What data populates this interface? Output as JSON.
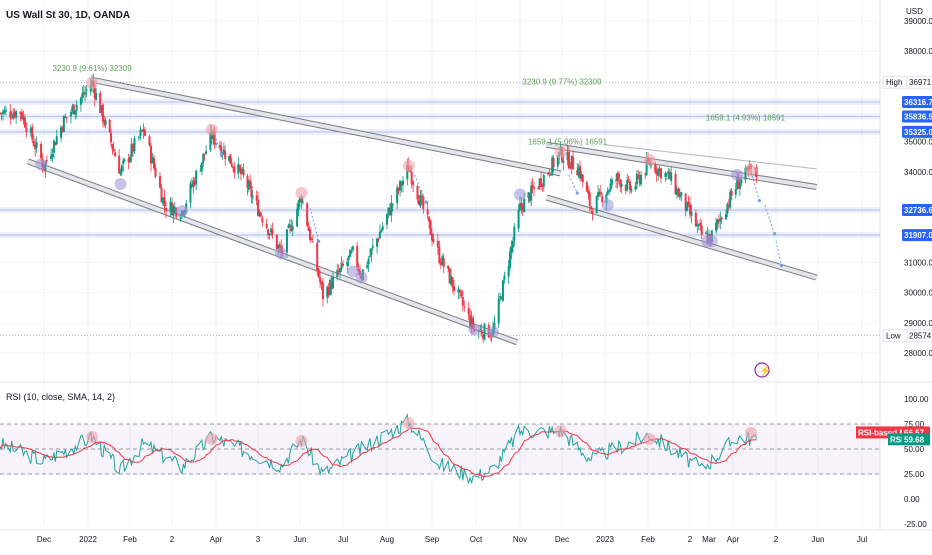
{
  "symbol_title": "US Wall St 30, 1D, OANDA",
  "price_currency": "USD",
  "rsi_legend": "RSI (10, close, SMA, 14, 2)",
  "price_axis": {
    "ticks": [
      {
        "value": 39000,
        "label": "39000.0"
      },
      {
        "value": 38000,
        "label": "38000.0"
      },
      {
        "value": 35000,
        "label": "35000.0"
      },
      {
        "value": 34000,
        "label": "34000.0"
      },
      {
        "value": 31000,
        "label": "31000.0"
      },
      {
        "value": 30000,
        "label": "30000.0"
      },
      {
        "value": 29000,
        "label": "29000.0"
      },
      {
        "value": 28000,
        "label": "28000.0"
      }
    ],
    "tags": [
      {
        "caption": "High",
        "value": 36971.4,
        "label": "36971.4",
        "style": "hilo"
      },
      {
        "caption": "",
        "value": 36316.7,
        "label": "36316.7",
        "style": "blue"
      },
      {
        "caption": "",
        "value": 35836.5,
        "label": "35836.5",
        "style": "blue"
      },
      {
        "caption": "",
        "value": 35325.0,
        "label": "35325.0",
        "style": "blue"
      },
      {
        "caption": "",
        "value": 32736.6,
        "label": "32736.6",
        "style": "blue"
      },
      {
        "caption": "",
        "value": 31907.0,
        "label": "31907.0",
        "style": "blue"
      },
      {
        "caption": "Low",
        "value": 28574.0,
        "label": "28574.0",
        "style": "hilo"
      }
    ]
  },
  "rsi_axis": {
    "ticks": [
      {
        "value": 100,
        "label": "100.00"
      },
      {
        "value": 75,
        "label": "75.00"
      },
      {
        "value": 50,
        "label": "50.00"
      },
      {
        "value": 25,
        "label": "25.00"
      },
      {
        "value": 0,
        "label": "0.00"
      },
      {
        "value": -25,
        "label": "-25.00"
      }
    ],
    "tags": [
      {
        "caption": "RSI-based MA",
        "value": 66.57,
        "label": "66.57",
        "color": "#f23645"
      },
      {
        "caption": "RSI",
        "value": 59.68,
        "label": "59.68",
        "color": "#089981"
      }
    ]
  },
  "time_axis": [
    {
      "label": "Dec",
      "date": "2021-12-01"
    },
    {
      "label": "2022",
      "date": "2022-01-01"
    },
    {
      "label": "Feb",
      "date": "2022-02-01"
    },
    {
      "label": "2",
      "date": "2022-03-01"
    },
    {
      "label": "Apr",
      "date": "2022-04-01"
    },
    {
      "label": "3",
      "date": "2022-05-03"
    },
    {
      "label": "Jun",
      "date": "2022-06-01"
    },
    {
      "label": "Jul",
      "date": "2022-07-01"
    },
    {
      "label": "Aug",
      "date": "2022-08-01"
    },
    {
      "label": "Sep",
      "date": "2022-09-01"
    },
    {
      "label": "Oct",
      "date": "2022-10-01"
    },
    {
      "label": "Nov",
      "date": "2022-11-01"
    },
    {
      "label": "Dec",
      "date": "2022-12-01"
    },
    {
      "label": "2023",
      "date": "2023-01-01"
    },
    {
      "label": "Feb",
      "date": "2023-02-01"
    },
    {
      "label": "2",
      "date": "2023-03-02"
    },
    {
      "label": "Mar",
      "date": "2023-03-15"
    },
    {
      "label": "Apr",
      "date": "2023-04-01"
    },
    {
      "label": "2",
      "date": "2023-05-02"
    },
    {
      "label": "Jun",
      "date": "2023-06-01"
    },
    {
      "label": "Jul",
      "date": "2023-07-01"
    }
  ],
  "annotations": [
    {
      "text": "3230.9 (9.61%) 32309",
      "date": "2022-01-04",
      "value": 37350
    },
    {
      "text": "3230.9 (9.77%) 32309",
      "date": "2022-12-01",
      "value": 36900
    },
    {
      "text": "1659.1 (5.06%) 16591",
      "date": "2022-12-05",
      "value": 34900
    },
    {
      "text": "1659.1 (4.93%) 16591",
      "date": "2023-04-10",
      "value": 35700
    }
  ],
  "chart_data": {
    "type": "candlestick",
    "series_line": [
      [
        "2021-11-01",
        35950
      ],
      [
        "2021-11-15",
        36000
      ],
      [
        "2021-12-01",
        34200
      ],
      [
        "2021-12-15",
        35700
      ],
      [
        "2022-01-04",
        36950
      ],
      [
        "2022-01-25",
        34000
      ],
      [
        "2022-02-10",
        35400
      ],
      [
        "2022-02-24",
        32900
      ],
      [
        "2022-03-08",
        32700
      ],
      [
        "2022-03-29",
        35200
      ],
      [
        "2022-04-22",
        33800
      ],
      [
        "2022-05-19",
        31300
      ],
      [
        "2022-06-02",
        33200
      ],
      [
        "2022-06-17",
        29900
      ],
      [
        "2022-07-08",
        31300
      ],
      [
        "2022-07-14",
        30600
      ],
      [
        "2022-08-16",
        34150
      ],
      [
        "2022-09-06",
        31200
      ],
      [
        "2022-09-30",
        28750
      ],
      [
        "2022-10-13",
        28700
      ],
      [
        "2022-11-01",
        32800
      ],
      [
        "2022-11-30",
        34600
      ],
      [
        "2022-12-13",
        34100
      ],
      [
        "2022-12-22",
        32800
      ],
      [
        "2023-01-10",
        33800
      ],
      [
        "2023-01-20",
        33400
      ],
      [
        "2023-02-02",
        34300
      ],
      [
        "2023-02-16",
        33800
      ],
      [
        "2023-03-10",
        31900
      ],
      [
        "2023-03-16",
        31800
      ],
      [
        "2023-04-04",
        33600
      ],
      [
        "2023-04-14",
        34050
      ],
      [
        "2023-04-18",
        33900
      ]
    ],
    "rsi": [
      [
        "2021-11-01",
        55
      ],
      [
        "2021-12-01",
        38
      ],
      [
        "2022-01-04",
        62
      ],
      [
        "2022-01-25",
        28
      ],
      [
        "2022-02-10",
        55
      ],
      [
        "2022-03-08",
        32
      ],
      [
        "2022-03-29",
        62
      ],
      [
        "2022-05-19",
        34
      ],
      [
        "2022-06-02",
        60
      ],
      [
        "2022-06-17",
        25
      ],
      [
        "2022-07-08",
        45
      ],
      [
        "2022-08-16",
        78
      ],
      [
        "2022-09-06",
        35
      ],
      [
        "2022-09-30",
        22
      ],
      [
        "2022-10-13",
        30
      ],
      [
        "2022-11-01",
        68
      ],
      [
        "2022-11-30",
        68
      ],
      [
        "2022-12-22",
        40
      ],
      [
        "2023-02-02",
        65
      ],
      [
        "2023-03-10",
        30
      ],
      [
        "2023-04-04",
        62
      ],
      [
        "2023-04-18",
        60
      ]
    ],
    "channel_lines": [
      {
        "from": [
          "2022-01-04",
          37050
        ],
        "to": [
          "2022-11-30",
          33950
        ]
      },
      {
        "from": [
          "2021-11-20",
          34350
        ],
        "to": [
          "2022-10-30",
          28350
        ]
      },
      {
        "from": [
          "2022-11-20",
          34900
        ],
        "to": [
          "2023-05-31",
          33500
        ]
      },
      {
        "from": [
          "2022-11-20",
          33150
        ],
        "to": [
          "2023-05-31",
          30500
        ]
      },
      {
        "from": [
          "2023-01-01",
          34900
        ],
        "to": [
          "2023-05-31",
          34100
        ]
      }
    ]
  },
  "colors": {
    "up": "#089981",
    "down": "#f23645",
    "rsi": "#22a39f",
    "rsi_ma": "#f23645",
    "tag_blue": "#2962ff",
    "channel": "#9598a1",
    "annotation": "#5fa15a",
    "highlight_purple": "#7b68c8"
  }
}
